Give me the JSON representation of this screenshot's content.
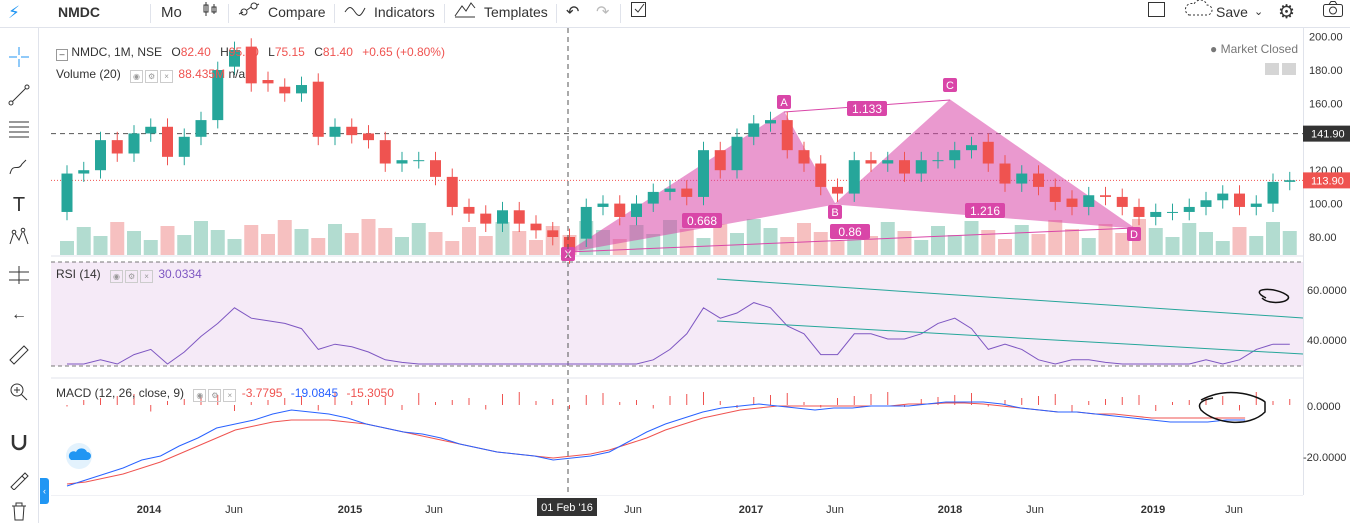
{
  "toolbar": {
    "symbol": "NMDC",
    "interval": "Mo",
    "compare": "Compare",
    "indicators": "Indicators",
    "templates": "Templates",
    "save": "Save",
    "icons": [
      "menu-icon",
      "candles-icon",
      "compare-icon",
      "indicators-icon",
      "templates-icon",
      "undo-icon",
      "redo-icon",
      "checkbox-icon",
      "fullscreen-icon",
      "cloud-icon",
      "gear-icon",
      "camera-icon"
    ]
  },
  "legend": {
    "title": "NMDC, 1M, NSE",
    "o_lbl": "O",
    "o": "82.40",
    "h_lbl": "H",
    "h": "95.00",
    "l_lbl": "L",
    "l": "75.15",
    "c_lbl": "C",
    "c": "81.40",
    "chg": "+0.65 (+0.80%)",
    "volume_lbl": "Volume (20)",
    "volume_val": "88.435M",
    "volume_na": "n/a",
    "rsi_lbl": "RSI (14)",
    "rsi_val": "30.0334",
    "macd_lbl": "MACD (12, 26, close, 9)",
    "macd_v1": "-3.7795",
    "macd_v2": "-19.0845",
    "macd_v3": "-15.3050"
  },
  "market_status": "Market Closed",
  "price_axis": [
    "200.00",
    "180.00",
    "160.00",
    "140.00",
    "120.00",
    "100.00",
    "80.00"
  ],
  "price_badges": {
    "crosshair": "141.90",
    "last": "113.90"
  },
  "rsi_axis": [
    "60.0000",
    "40.0000"
  ],
  "macd_axis": [
    "0.0000",
    "-20.0000"
  ],
  "time_axis": [
    "2014",
    "Jun",
    "2015",
    "Jun",
    "Jun",
    "2017",
    "Jun",
    "2018",
    "Jun",
    "2019",
    "Jun"
  ],
  "time_highlight": "01 Feb '16",
  "pattern": {
    "points": [
      "X",
      "A",
      "B",
      "C",
      "D"
    ],
    "ratios": [
      "0.668",
      "1.133",
      "1.216",
      "0.86"
    ]
  },
  "colors": {
    "up": "#26a69a",
    "down": "#ef5350",
    "pattern": "#d946a8",
    "rsi": "#7e57c2",
    "macd": "#2962ff",
    "signal": "#ef5350"
  },
  "chart_data": {
    "type": "candlestick",
    "interval": "1M",
    "exchange": "NSE",
    "candles": [
      {
        "o": 95,
        "c": 118
      },
      {
        "o": 118,
        "c": 120
      },
      {
        "o": 120,
        "c": 138
      },
      {
        "o": 138,
        "c": 130
      },
      {
        "o": 130,
        "c": 142
      },
      {
        "o": 142,
        "c": 146
      },
      {
        "o": 146,
        "c": 128
      },
      {
        "o": 128,
        "c": 140
      },
      {
        "o": 140,
        "c": 150
      },
      {
        "o": 150,
        "c": 180
      },
      {
        "o": 182,
        "c": 192
      },
      {
        "o": 194,
        "c": 172
      },
      {
        "o": 174,
        "c": 172
      },
      {
        "o": 170,
        "c": 166
      },
      {
        "o": 166,
        "c": 171
      },
      {
        "o": 173,
        "c": 140
      },
      {
        "o": 140,
        "c": 146
      },
      {
        "o": 146,
        "c": 141
      },
      {
        "o": 142,
        "c": 138
      },
      {
        "o": 138,
        "c": 124
      },
      {
        "o": 124,
        "c": 126
      },
      {
        "o": 126,
        "c": 126
      },
      {
        "o": 126,
        "c": 116
      },
      {
        "o": 116,
        "c": 98
      },
      {
        "o": 98,
        "c": 94
      },
      {
        "o": 94,
        "c": 88
      },
      {
        "o": 88,
        "c": 96
      },
      {
        "o": 96,
        "c": 88
      },
      {
        "o": 88,
        "c": 84
      },
      {
        "o": 84,
        "c": 80
      },
      {
        "o": 80,
        "c": 69
      },
      {
        "o": 79,
        "c": 98
      },
      {
        "o": 98,
        "c": 100
      },
      {
        "o": 100,
        "c": 92
      },
      {
        "o": 92,
        "c": 100
      },
      {
        "o": 100,
        "c": 107
      },
      {
        "o": 107,
        "c": 109
      },
      {
        "o": 109,
        "c": 104
      },
      {
        "o": 104,
        "c": 132
      },
      {
        "o": 132,
        "c": 120
      },
      {
        "o": 120,
        "c": 140
      },
      {
        "o": 140,
        "c": 148
      },
      {
        "o": 148,
        "c": 150
      },
      {
        "o": 150,
        "c": 132
      },
      {
        "o": 132,
        "c": 124
      },
      {
        "o": 124,
        "c": 110
      },
      {
        "o": 110,
        "c": 106
      },
      {
        "o": 106,
        "c": 126
      },
      {
        "o": 126,
        "c": 124
      },
      {
        "o": 124,
        "c": 126
      },
      {
        "o": 126,
        "c": 118
      },
      {
        "o": 118,
        "c": 126
      },
      {
        "o": 126,
        "c": 126
      },
      {
        "o": 126,
        "c": 132
      },
      {
        "o": 132,
        "c": 135
      },
      {
        "o": 137,
        "c": 124
      },
      {
        "o": 124,
        "c": 112
      },
      {
        "o": 112,
        "c": 118
      },
      {
        "o": 118,
        "c": 110
      },
      {
        "o": 110,
        "c": 101
      },
      {
        "o": 103,
        "c": 98
      },
      {
        "o": 98,
        "c": 105
      },
      {
        "o": 105,
        "c": 104
      },
      {
        "o": 104,
        "c": 98
      },
      {
        "o": 98,
        "c": 92
      },
      {
        "o": 92,
        "c": 95
      },
      {
        "o": 95,
        "c": 95
      },
      {
        "o": 95,
        "c": 98
      },
      {
        "o": 98,
        "c": 102
      },
      {
        "o": 102,
        "c": 106
      },
      {
        "o": 106,
        "c": 98
      },
      {
        "o": 98,
        "c": 100
      },
      {
        "o": 100,
        "c": 113
      },
      {
        "o": 113,
        "c": 114
      }
    ],
    "ylim": [
      70,
      205
    ],
    "rsi": {
      "range": [
        30,
        70
      ],
      "upper": 70,
      "lower": 30,
      "last": 30.0334
    },
    "macd": {
      "macd": -19.0845,
      "signal": -15.305,
      "hist": -3.7795
    }
  }
}
